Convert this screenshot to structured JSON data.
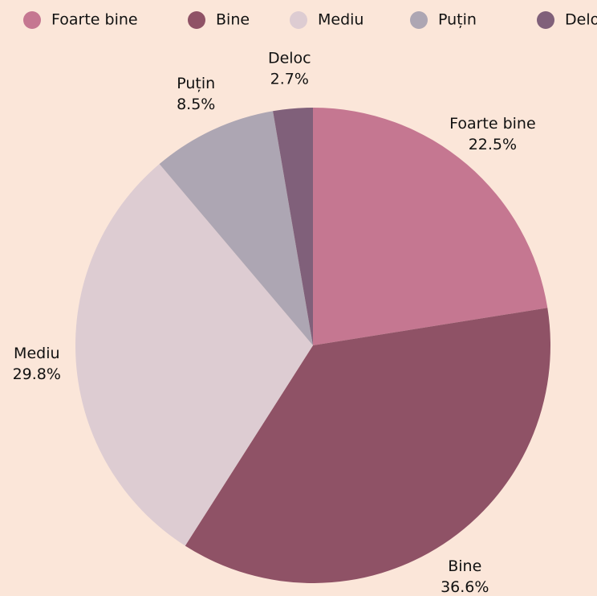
{
  "chart_data": {
    "type": "pie",
    "categories": [
      "Foarte bine",
      "Bine",
      "Mediu",
      "Puțin",
      "Deloc"
    ],
    "values": [
      22.5,
      36.6,
      29.8,
      8.5,
      2.7
    ],
    "value_labels": [
      "22.5%",
      "36.6%",
      "29.8%",
      "8.5%",
      "2.7%"
    ],
    "colors": [
      "#c57791",
      "#8f5266",
      "#ddccd2",
      "#ada6b3",
      "#80607a"
    ],
    "legend": "top"
  }
}
